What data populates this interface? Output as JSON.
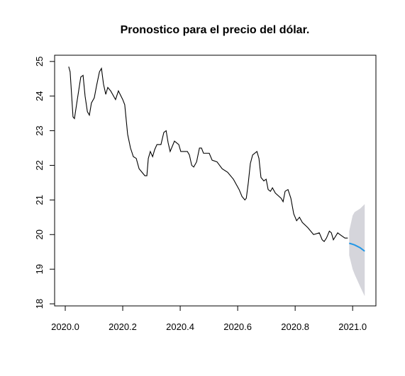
{
  "chart_data": {
    "type": "line",
    "title": "Pronostico para el precio del dólar.",
    "xlim": [
      2019.963,
      2021.081
    ],
    "ylim": [
      17.94,
      25.18
    ],
    "xticks": [
      {
        "value": 2020.0,
        "label": "2020.0"
      },
      {
        "value": 2020.2,
        "label": "2020.2"
      },
      {
        "value": 2020.4,
        "label": "2020.4"
      },
      {
        "value": 2020.6,
        "label": "2020.6"
      },
      {
        "value": 2020.8,
        "label": "2020.8"
      },
      {
        "value": 2021.0,
        "label": "2021.0"
      }
    ],
    "yticks": [
      18,
      19,
      20,
      21,
      22,
      23,
      24,
      25
    ],
    "grid": false,
    "series": [
      {
        "color": "#000000",
        "x": [
          2020.012,
          2020.017,
          2020.027,
          2020.032,
          2020.042,
          2020.054,
          2020.062,
          2020.069,
          2020.077,
          2020.084,
          2020.091,
          2020.101,
          2020.109,
          2020.119,
          2020.126,
          2020.133,
          2020.141,
          2020.148,
          2020.158,
          2020.175,
          2020.185,
          2020.2,
          2020.207,
          2020.217,
          2020.227,
          2020.237,
          2020.247,
          2020.257,
          2020.267,
          2020.277,
          2020.284,
          2020.289,
          2020.296,
          2020.304,
          2020.311,
          2020.319,
          2020.333,
          2020.343,
          2020.351,
          2020.358,
          2020.365,
          2020.38,
          2020.395,
          2020.402,
          2020.425,
          2020.432,
          2020.44,
          2020.447,
          2020.457,
          2020.467,
          2020.474,
          2020.481,
          2020.501,
          2020.511,
          2020.528,
          2020.546,
          2020.565,
          2020.585,
          2020.605,
          2020.615,
          2020.625,
          2020.63,
          2020.637,
          2020.644,
          2020.652,
          2020.667,
          2020.674,
          2020.681,
          2020.691,
          2020.699,
          2020.706,
          2020.714,
          2020.721,
          2020.731,
          2020.751,
          2020.758,
          2020.765,
          2020.775,
          2020.785,
          2020.795,
          2020.805,
          2020.815,
          2020.825,
          2020.844,
          2020.864,
          2020.884,
          2020.894,
          2020.901,
          2020.909,
          2020.919,
          2020.926,
          2020.933,
          2020.948,
          2020.956,
          2020.973,
          2020.983
        ],
        "values": [
          24.85,
          24.7,
          23.4,
          23.35,
          23.9,
          24.55,
          24.6,
          24.0,
          23.55,
          23.45,
          23.8,
          23.95,
          24.3,
          24.7,
          24.8,
          24.35,
          24.05,
          24.25,
          24.15,
          23.9,
          24.15,
          23.9,
          23.75,
          22.9,
          22.5,
          22.25,
          22.2,
          21.9,
          21.8,
          21.7,
          21.7,
          22.2,
          22.4,
          22.25,
          22.45,
          22.6,
          22.6,
          22.95,
          23.0,
          22.65,
          22.4,
          22.7,
          22.6,
          22.4,
          22.4,
          22.3,
          22.0,
          21.95,
          22.1,
          22.5,
          22.5,
          22.35,
          22.35,
          22.15,
          22.1,
          21.9,
          21.8,
          21.6,
          21.3,
          21.1,
          21.0,
          21.05,
          21.5,
          22.05,
          22.3,
          22.4,
          22.2,
          21.65,
          21.55,
          21.6,
          21.3,
          21.25,
          21.35,
          21.2,
          21.05,
          20.95,
          21.25,
          21.3,
          21.05,
          20.6,
          20.4,
          20.5,
          20.35,
          20.2,
          20.0,
          20.05,
          19.85,
          19.8,
          19.9,
          20.1,
          20.05,
          19.85,
          20.05,
          20.0,
          19.9,
          19.9
        ]
      },
      {
        "color": "#2297e6",
        "band_color": "#d5d5db",
        "x": [
          2020.988,
          2021.0,
          2021.007,
          2021.026,
          2021.042
        ],
        "values": [
          19.75,
          19.72,
          19.7,
          19.62,
          19.52
        ],
        "lower": [
          19.4,
          19.0,
          18.85,
          18.5,
          18.22
        ],
        "upper": [
          20.1,
          20.55,
          20.65,
          20.75,
          20.88
        ]
      }
    ]
  }
}
